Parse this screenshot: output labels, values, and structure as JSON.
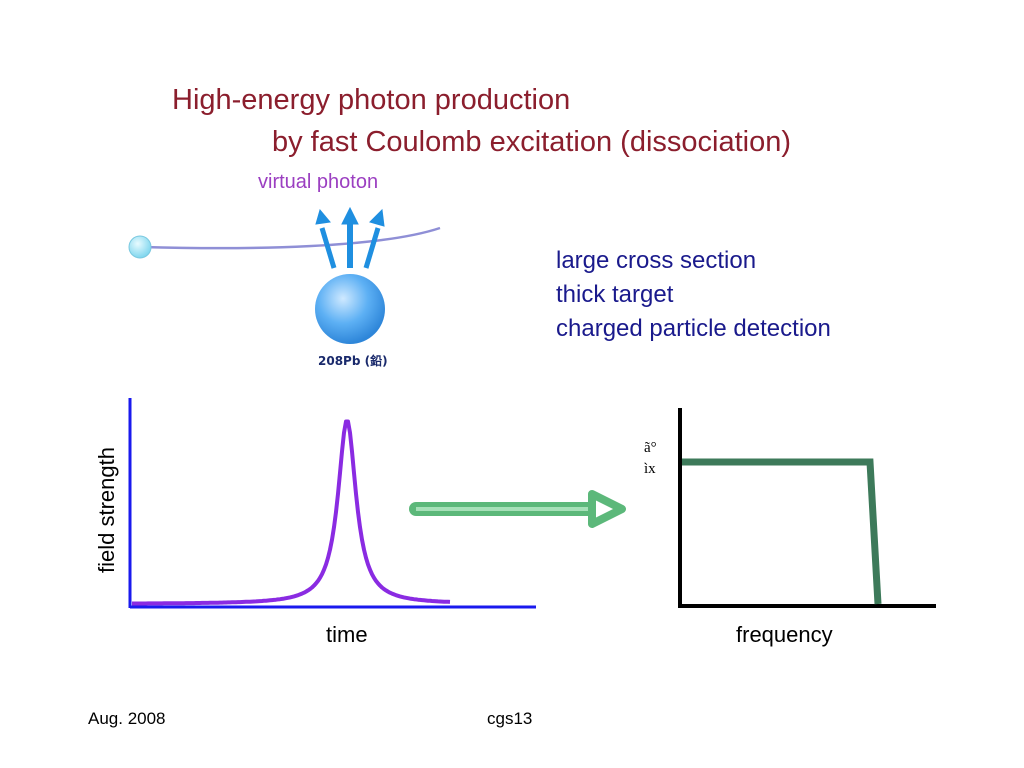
{
  "title": {
    "line1": "High-energy photon production",
    "line2": "by fast Coulomb excitation (dissociation)"
  },
  "diagram": {
    "virtual_photon_label": "virtual photon",
    "nucleus_label": "208Pb (鉛)"
  },
  "points": [
    "large cross section",
    "thick target",
    "charged particle detection"
  ],
  "time_plot": {
    "ylabel": "field strength",
    "xlabel": "time"
  },
  "frequency_plot": {
    "xlabel": "frequency",
    "garbled_label": [
      "ã°",
      "ìx"
    ]
  },
  "footer": {
    "date": "Aug. 2008",
    "code": "cgs13"
  },
  "colors": {
    "title": "#8b1e2d",
    "virtual_photon": "#9b3fc1",
    "points": "#1a1a8c",
    "pulse": "#8a2be2",
    "spectrum": "#3d7a5a",
    "arrow": "#5cb87a",
    "photon_arrows": "#1f8fe0",
    "nucleus": "#4aa3f0"
  },
  "icons": {
    "projectile": "circle",
    "photon_arrows": "up-arrow",
    "nucleus": "sphere",
    "transform_arrow": "right-arrow"
  }
}
